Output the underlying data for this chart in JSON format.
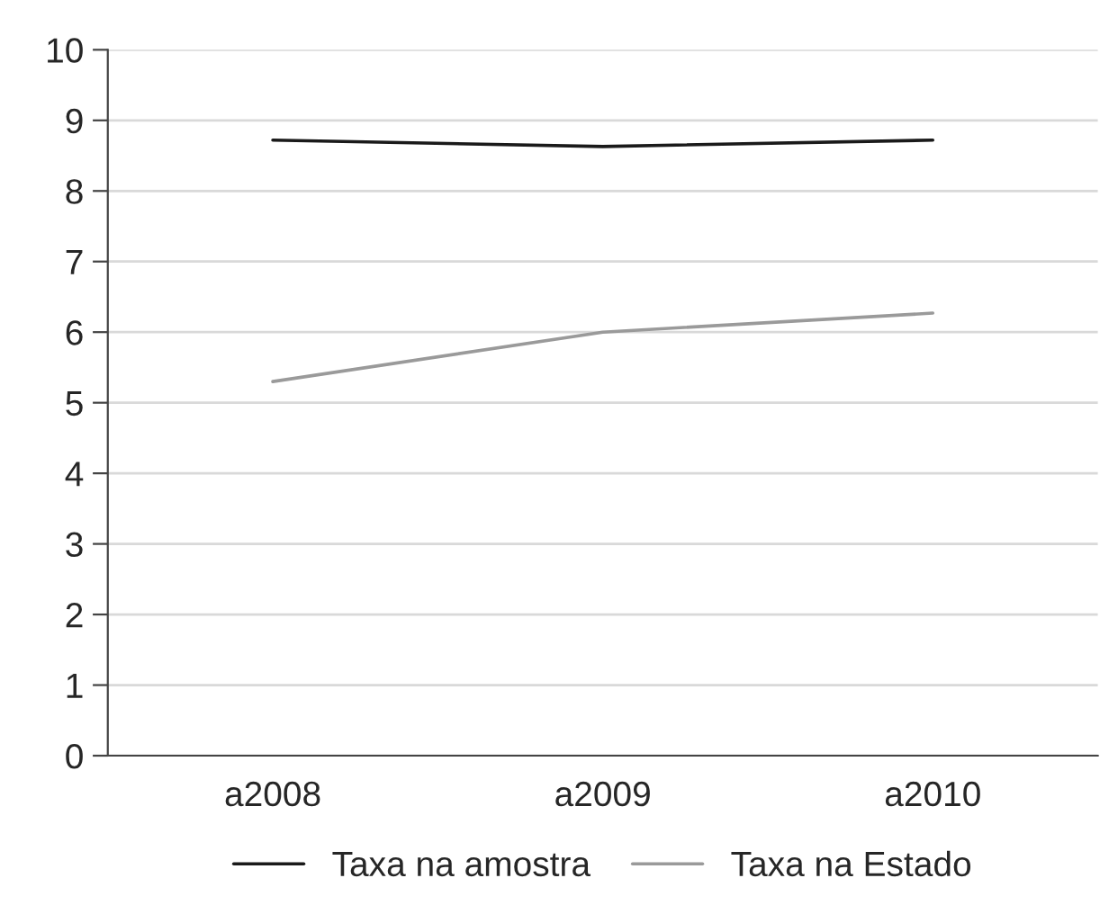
{
  "chart_data": {
    "type": "line",
    "categories": [
      "a2008",
      "a2009",
      "a2010"
    ],
    "series": [
      {
        "name": "Taxa na amostra",
        "color": "#1a1a1a",
        "values": [
          8.72,
          8.63,
          8.72
        ]
      },
      {
        "name": "Taxa na Estado",
        "color": "#9a9a9a",
        "values": [
          5.3,
          6.0,
          6.27
        ]
      }
    ],
    "ylim": [
      0,
      10
    ],
    "yticks": [
      0,
      1,
      2,
      3,
      4,
      5,
      6,
      7,
      8,
      9,
      10
    ],
    "grid": "y",
    "legend": "bottom",
    "marker": "none",
    "line_style": "solid"
  }
}
